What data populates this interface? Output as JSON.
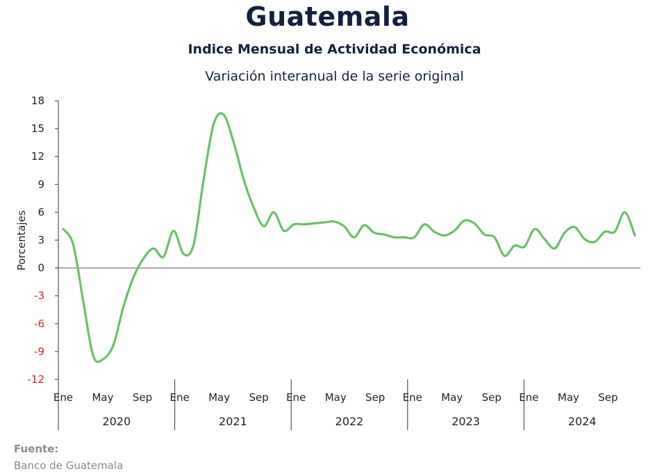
{
  "header": {
    "title": "Guatemala",
    "subtitle": "Indice Mensual de  Actividad Económica",
    "subtitle2": "Variación interanual de la serie original"
  },
  "footer": {
    "source_label": "Fuente:",
    "source_text": "Banco de Guatemala"
  },
  "chart_data": {
    "type": "line",
    "ylabel": "Porcentajes",
    "ylim": [
      -12,
      18
    ],
    "yticks": [
      18,
      15,
      12,
      9,
      6,
      3,
      0,
      -3,
      -6,
      -9,
      -12
    ],
    "month_labels": [
      "Ene",
      "May",
      "Sep"
    ],
    "years": [
      "2020",
      "2021",
      "2022",
      "2023",
      "2024"
    ],
    "line_color": "#6abf69",
    "negative_tick_color": "#d62828",
    "series": [
      {
        "values": [
          4.2,
          2.5,
          -3.6,
          -9.5,
          -9.8,
          -8.3,
          -4.2,
          -1.0,
          1.0,
          2.1,
          1.2,
          4.0,
          1.5,
          2.5,
          9.5,
          15.5,
          16.5,
          13.5,
          9.5,
          6.5,
          4.5,
          6.0,
          4.0,
          4.7,
          4.7,
          4.8,
          4.9,
          5.0,
          4.5,
          3.3,
          4.6,
          3.8,
          3.6,
          3.3,
          3.3,
          3.3,
          4.7,
          3.9,
          3.5,
          4.0,
          5.1,
          4.8,
          3.6,
          3.3,
          1.3,
          2.4,
          2.3,
          4.2,
          3.1,
          2.1,
          3.8,
          4.4,
          3.1,
          2.8,
          3.9,
          3.9,
          6.0,
          3.5
        ]
      }
    ]
  }
}
